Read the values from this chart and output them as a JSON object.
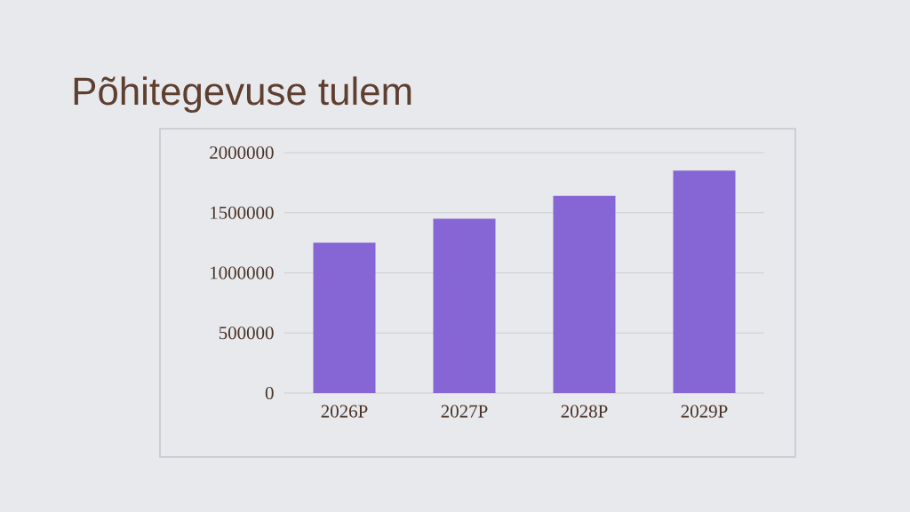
{
  "chart_data": {
    "type": "bar",
    "title": "Põhitegevuse tulem",
    "categories": [
      "2026P",
      "2027P",
      "2028P",
      "2029P"
    ],
    "values": [
      1250000,
      1450000,
      1640000,
      1850000
    ],
    "color": "#8566d4",
    "ylim": [
      0,
      2000000
    ],
    "yticks": [
      0,
      500000,
      1000000,
      1500000,
      2000000
    ],
    "grid": "y"
  }
}
